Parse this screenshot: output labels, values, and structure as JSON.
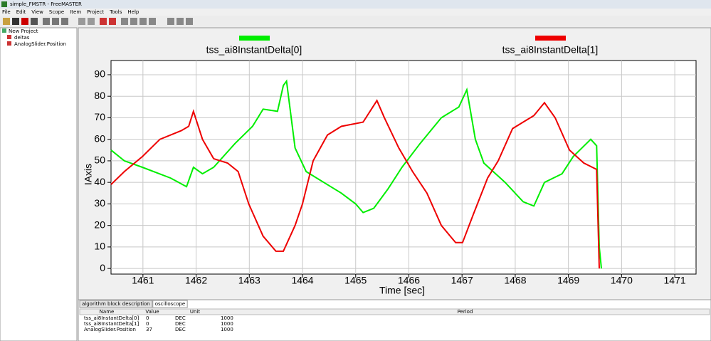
{
  "window": {
    "title": "simple_FMSTR - FreeMASTER",
    "menu": [
      "File",
      "Edit",
      "View",
      "Scope",
      "Item",
      "Project",
      "Tools",
      "Help"
    ]
  },
  "tree": {
    "root": "New Project",
    "items": [
      "deltas",
      "AnalogSlider.Position"
    ]
  },
  "tabs": [
    "algorithm block description",
    "oscilloscope"
  ],
  "table": {
    "columns": [
      "Name",
      "Value",
      "Unit",
      "Period"
    ],
    "rows": [
      [
        "tss_ai8InstantDelta[0]",
        "0",
        "DEC",
        "1000"
      ],
      [
        "tss_ai8InstantDelta[1]",
        "0",
        "DEC",
        "1000"
      ],
      [
        "AnalogSlider.Position",
        "37",
        "DEC",
        "1000"
      ]
    ]
  },
  "chart_data": {
    "type": "line",
    "xlabel": "Time [sec]",
    "ylabel": "IAxis",
    "xlim": [
      1460.4,
      1471.4
    ],
    "ylim": [
      -2.6,
      96.6
    ],
    "xticks": [
      1461,
      1462,
      1463,
      1464,
      1465,
      1466,
      1467,
      1468,
      1469,
      1470,
      1471
    ],
    "yticks": [
      0,
      10,
      20,
      30,
      40,
      50,
      60,
      70,
      80,
      90
    ],
    "grid": true,
    "series": [
      {
        "name": "tss_ai8InstantDelta[0]",
        "color": "#00ee00",
        "x": [
          1460.4,
          1460.65,
          1460.99,
          1461.52,
          1461.82,
          1461.95,
          1462.12,
          1462.33,
          1462.73,
          1463.06,
          1463.26,
          1463.53,
          1463.64,
          1463.7,
          1463.86,
          1464.07,
          1464.4,
          1464.73,
          1465.0,
          1465.14,
          1465.34,
          1465.61,
          1465.87,
          1466.21,
          1466.61,
          1466.94,
          1467.09,
          1467.25,
          1467.41,
          1467.81,
          1468.15,
          1468.35,
          1468.55,
          1468.88,
          1469.09,
          1469.42,
          1469.53,
          1469.58,
          1469.62
        ],
        "values": [
          55,
          50,
          47,
          42,
          38,
          47,
          44,
          47,
          58,
          66,
          74,
          73,
          85,
          87,
          56,
          45,
          40,
          35,
          30,
          26,
          28,
          37,
          47,
          58,
          70,
          75,
          83,
          60,
          49,
          40,
          31,
          29,
          40,
          44,
          52,
          60,
          57,
          10,
          0
        ]
      },
      {
        "name": "tss_ai8InstantDelta[1]",
        "color": "#ee0000",
        "x": [
          1460.4,
          1460.65,
          1460.99,
          1461.32,
          1461.72,
          1461.86,
          1461.95,
          1462.12,
          1462.33,
          1462.59,
          1462.79,
          1462.99,
          1463.26,
          1463.5,
          1463.64,
          1463.86,
          1464.0,
          1464.2,
          1464.47,
          1464.73,
          1465.14,
          1465.4,
          1465.54,
          1465.81,
          1466.07,
          1466.34,
          1466.61,
          1466.88,
          1467.01,
          1467.21,
          1467.48,
          1467.68,
          1467.95,
          1468.35,
          1468.55,
          1468.75,
          1469.02,
          1469.29,
          1469.53,
          1469.58
        ],
        "values": [
          39,
          45,
          52,
          60,
          64,
          66,
          73,
          60,
          51,
          49,
          45,
          30,
          15,
          8,
          8,
          20,
          30,
          50,
          62,
          66,
          68,
          78,
          70,
          56,
          45,
          35,
          20,
          12,
          12,
          25,
          42,
          50,
          65,
          71,
          77,
          70,
          55,
          49,
          46,
          0
        ]
      }
    ]
  }
}
